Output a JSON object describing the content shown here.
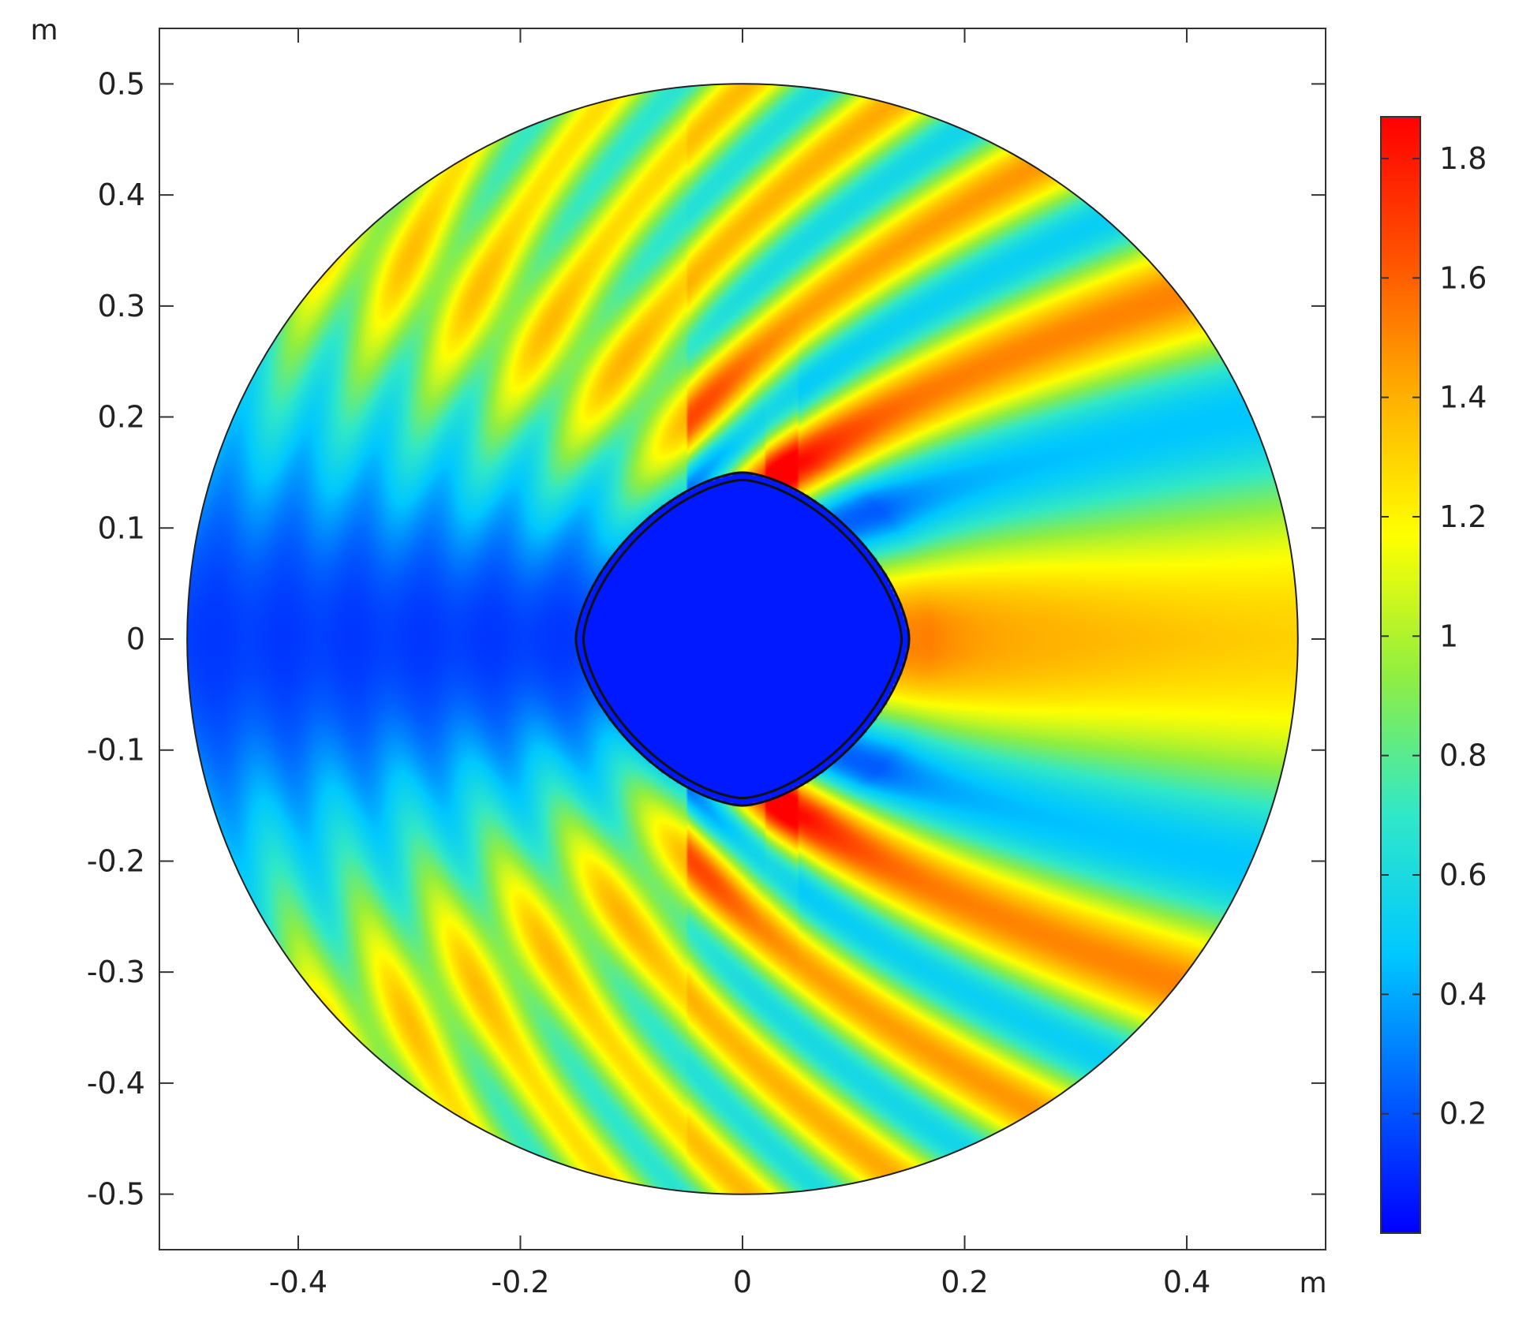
{
  "chart_data": {
    "type": "heatmap",
    "title": "",
    "x_unit_label": "m",
    "y_unit_label": "m",
    "xlim": [
      -0.525,
      0.525
    ],
    "ylim": [
      -0.55,
      0.55
    ],
    "x_ticks": [
      -0.4,
      -0.2,
      0,
      0.2,
      0.4
    ],
    "x_tick_labels": [
      "-0.4",
      "-0.2",
      "0",
      "0.2",
      "0.4"
    ],
    "y_ticks": [
      0.5,
      0.4,
      0.3,
      0.2,
      0.1,
      0,
      -0.1,
      -0.2,
      -0.3,
      -0.4,
      -0.5
    ],
    "y_tick_labels": [
      "0.5",
      "0.4",
      "0.3",
      "0.2",
      "0.1",
      "0",
      "-0.1",
      "-0.2",
      "-0.3",
      "-0.4",
      "-0.5"
    ],
    "grid": false,
    "domain": {
      "shape": "disk",
      "center": [
        0,
        0
      ],
      "radius": 0.5
    },
    "scatterer": {
      "shape": "rounded-diamond",
      "center": [
        0,
        0
      ],
      "half_width": 0.15,
      "half_height": 0.15
    },
    "field": {
      "description_visible": false,
      "shadow_side": "left",
      "illuminated_side": "right",
      "peak_value": 1.85,
      "min_value": 0.0
    },
    "colorbar": {
      "range": [
        0,
        1.87
      ],
      "ticks": [
        0.2,
        0.4,
        0.6,
        0.8,
        1,
        1.2,
        1.4,
        1.6,
        1.8
      ],
      "tick_labels": [
        "0.2",
        "0.4",
        "0.6",
        "0.8",
        "1",
        "1.2",
        "1.4",
        "1.6",
        "1.8"
      ],
      "colormap": "rainbow",
      "colormap_stops": [
        "#0000ff",
        "#0060ff",
        "#00c8ff",
        "#30e8c8",
        "#90ee40",
        "#ffff00",
        "#ffb000",
        "#ff5000",
        "#ff0000"
      ],
      "placement": "right"
    }
  }
}
